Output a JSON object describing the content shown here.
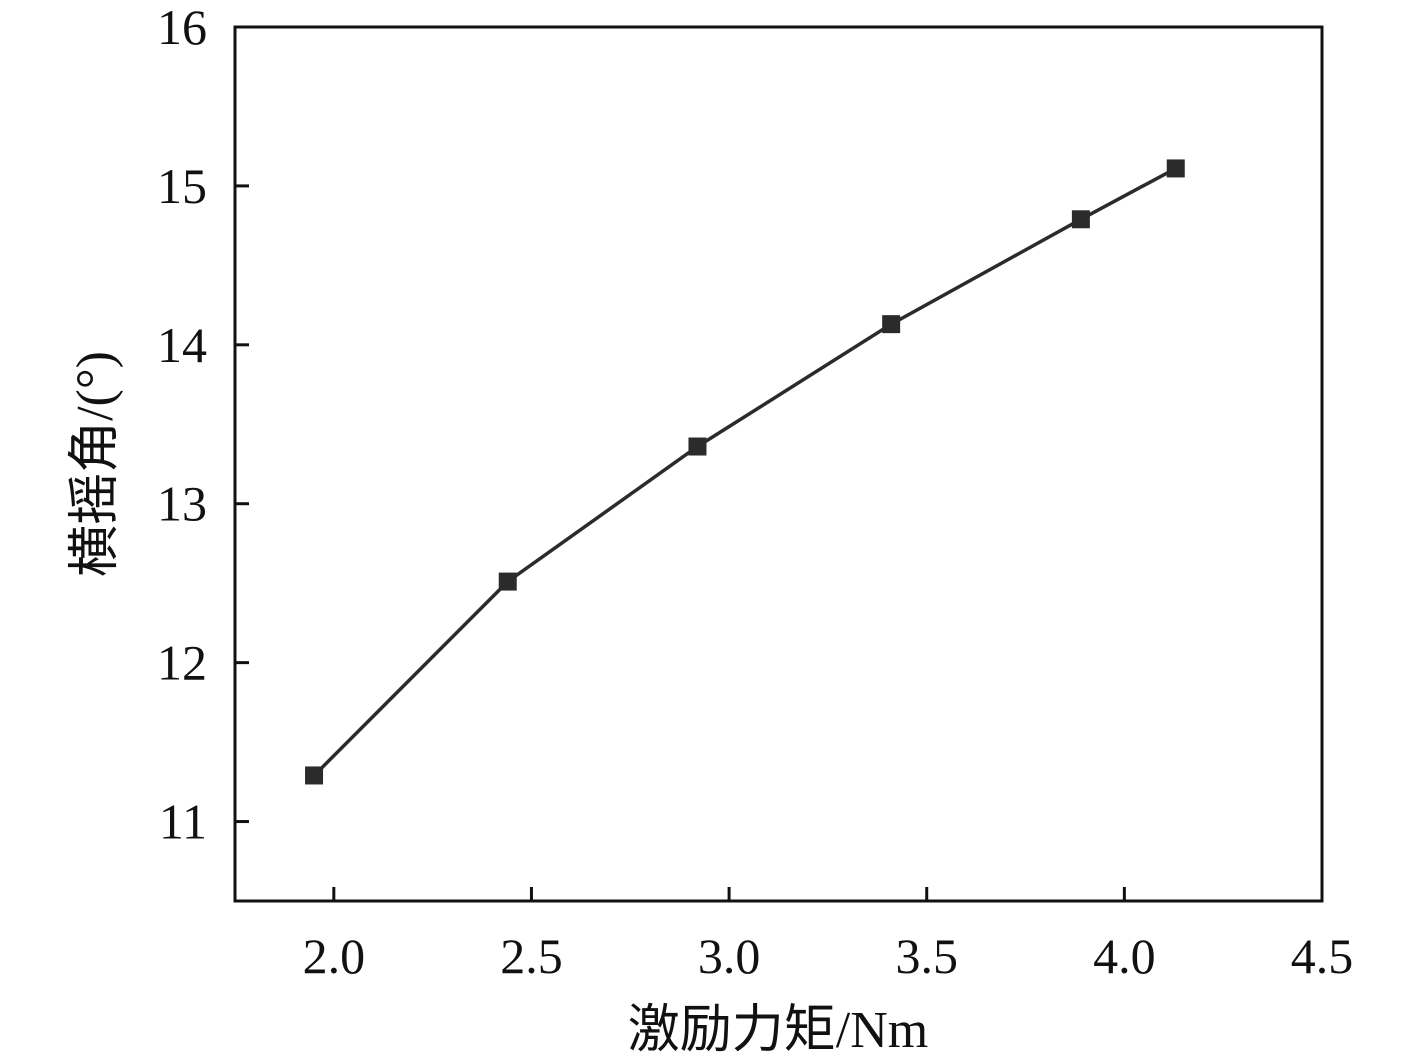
{
  "chart_data": {
    "type": "line",
    "title": "",
    "xlabel": "激励力矩/Nm",
    "ylabel": "横摇角/(°)",
    "xlim": [
      1.75,
      4.5
    ],
    "ylim": [
      10.5,
      16
    ],
    "x_ticks": [
      2.0,
      2.5,
      3.0,
      3.5,
      4.0,
      4.5
    ],
    "x_tick_labels": [
      "2.0",
      "2.5",
      "3.0",
      "3.5",
      "4.0",
      "4.5"
    ],
    "y_ticks": [
      11,
      12,
      13,
      14,
      15,
      16
    ],
    "y_tick_labels": [
      "11",
      "12",
      "13",
      "14",
      "15",
      "16"
    ],
    "grid": false,
    "legend": "none",
    "series": [
      {
        "marker": "square",
        "color": "#2b2b2b",
        "x": [
          1.95,
          2.44,
          2.92,
          3.41,
          3.89,
          4.13
        ],
        "y": [
          11.29,
          12.51,
          13.36,
          14.13,
          14.79,
          15.11
        ]
      }
    ]
  }
}
